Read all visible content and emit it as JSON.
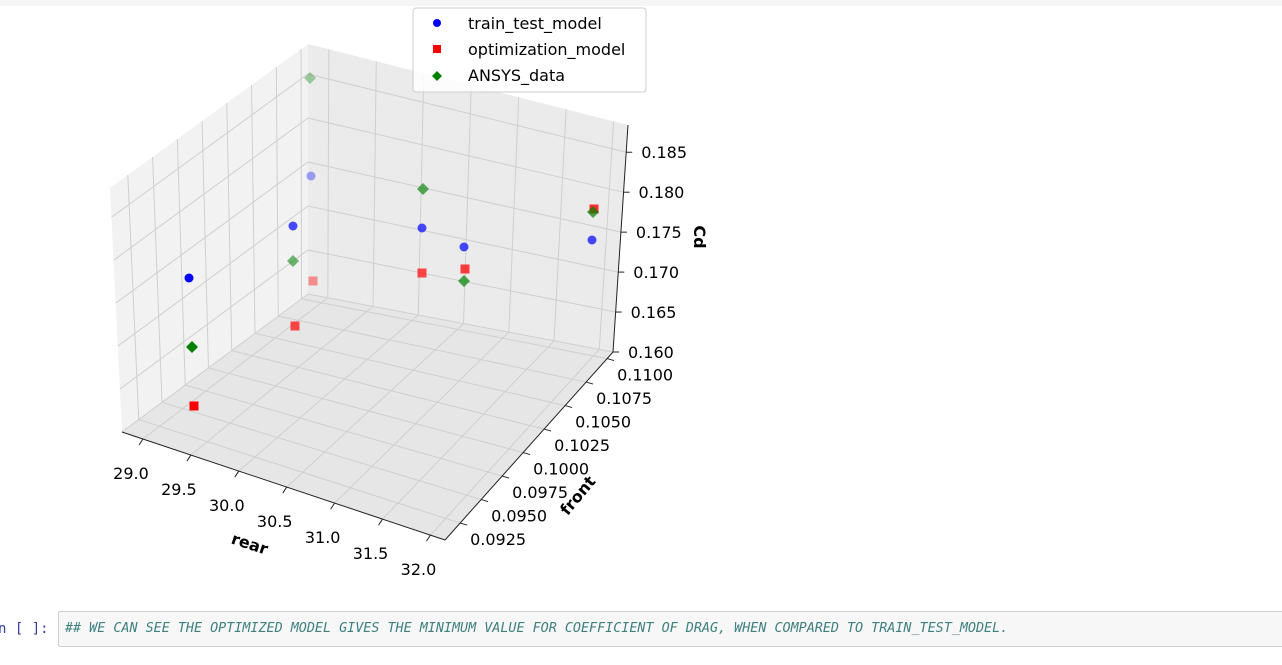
{
  "chart_data": {
    "type": "scatter3d",
    "title": "",
    "xlabel": "rear",
    "ylabel": "front",
    "zlabel": "Cd",
    "xticks": [
      "29.0",
      "29.5",
      "30.0",
      "30.5",
      "31.0",
      "31.5",
      "32.0"
    ],
    "yticks": [
      "0.0925",
      "0.0950",
      "0.0975",
      "0.1000",
      "0.1025",
      "0.1050",
      "0.1075",
      "0.1100"
    ],
    "zticks": [
      "0.160",
      "0.165",
      "0.170",
      "0.175",
      "0.180",
      "0.185"
    ],
    "grid": true,
    "legend_position": "top",
    "series": [
      {
        "name": "train_test_model",
        "color": "#0000ff",
        "marker": "circle"
      },
      {
        "name": "optimization_model",
        "color": "#ff0000",
        "marker": "square"
      },
      {
        "name": "ANSYS_data",
        "color": "#008000",
        "marker": "diamond"
      }
    ]
  },
  "notebook": {
    "prompt": "n [ ]:",
    "cell_text": "## WE CAN SEE THE OPTIMIZED MODEL GIVES THE MINIMUM VALUE FOR COEFFICIENT OF DRAG, WHEN COMPARED TO TRAIN_TEST_MODEL."
  }
}
